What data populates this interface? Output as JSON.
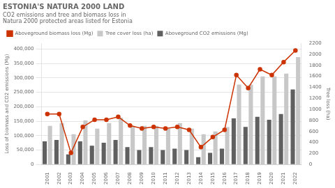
{
  "chart_data": {
    "type": "bar",
    "title": "ESTONIA'S NATURA 2000 LAND",
    "subtitle": [
      "CO2 emissions and tree and biomass loss in",
      "Natura 2000 protected areas listed for Estonia"
    ],
    "categories": [
      "2001",
      "2002",
      "2003",
      "2004",
      "2005",
      "2006",
      "2007",
      "2008",
      "2009",
      "2010",
      "2011",
      "2012",
      "2013",
      "2014",
      "2015",
      "2016",
      "2017",
      "2018",
      "2019",
      "2020",
      "2021",
      "2022"
    ],
    "series": [
      {
        "name": "Aboveground biomass loss (Mg)",
        "type": "line",
        "marker": "circle",
        "color": "#cc3300",
        "values": [
          175000,
          175000,
          40000,
          130000,
          155000,
          155000,
          165000,
          135000,
          125000,
          130000,
          125000,
          130000,
          120000,
          60000,
          95000,
          120000,
          310000,
          265000,
          330000,
          310000,
          355000,
          395000
        ]
      },
      {
        "name": "Tree cover loss (ha)",
        "type": "bar",
        "axis": "y2",
        "color": "#c8c8c8",
        "values": [
          700,
          750,
          550,
          800,
          650,
          750,
          850,
          700,
          700,
          700,
          650,
          750,
          650,
          550,
          600,
          680,
          1450,
          1450,
          1600,
          1600,
          1650,
          1950
        ]
      },
      {
        "name": "Aboveground CO2 emissions (Mg)",
        "type": "bar",
        "color": "#606060",
        "values": [
          80000,
          85000,
          35000,
          80000,
          65000,
          75000,
          85000,
          60000,
          50000,
          60000,
          50000,
          55000,
          50000,
          25000,
          40000,
          55000,
          160000,
          130000,
          165000,
          155000,
          175000,
          260000
        ]
      }
    ],
    "ylim": [
      0,
      420000
    ],
    "yticks": [
      0,
      {
        "value": 50000,
        "label": "50,000"
      },
      {
        "value": 100000,
        "label": "100,000"
      },
      {
        "value": 150000,
        "label": "150,000"
      },
      {
        "value": 200000,
        "label": "200,000"
      },
      {
        "value": 250000,
        "label": "250,000"
      },
      {
        "value": 300000,
        "label": "300,000"
      },
      {
        "value": 350000,
        "label": "350,000"
      },
      {
        "value": 400000,
        "label": "400,000"
      }
    ],
    "y2lim": [
      0,
      2200
    ],
    "y2ticks": [
      0,
      200,
      400,
      600,
      800,
      1000,
      1200,
      1400,
      1600,
      1800,
      2000,
      2200
    ],
    "ylabel": "Loss of biomass and CO2 emissions (Mg)",
    "y2label": "Tree loss (ha)",
    "grid": true,
    "legend": "top"
  }
}
